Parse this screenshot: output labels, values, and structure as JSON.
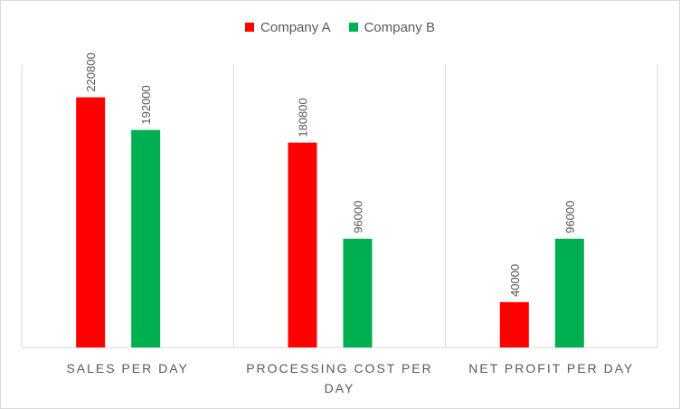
{
  "chart_data": {
    "type": "bar",
    "categories": [
      "SALES PER DAY",
      "PROCESSING COST PER DAY",
      "NET PROFIT PER DAY"
    ],
    "series": [
      {
        "name": "Company A",
        "color": "#ff0000",
        "values": [
          220800,
          180800,
          40000
        ]
      },
      {
        "name": "Company B",
        "color": "#00b050",
        "values": [
          192000,
          96000,
          96000
        ]
      }
    ],
    "ylim": [
      0,
      250000
    ],
    "legend": "top-center",
    "grid": "vertical-category-dividers",
    "value_labels": "rotated-vertical",
    "title": "",
    "xlabel": "",
    "ylabel": ""
  }
}
